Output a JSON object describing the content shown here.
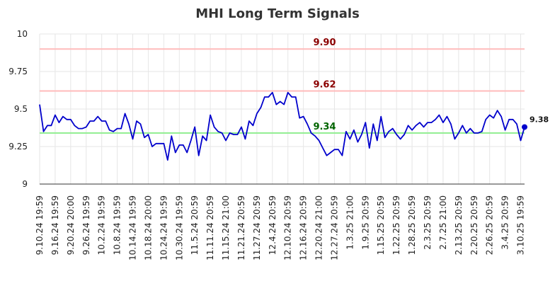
{
  "chart_data": {
    "type": "line",
    "title": "MHI Long Term Signals",
    "xlabel": "",
    "ylabel": "",
    "ylim": [
      9,
      10
    ],
    "yticks": [
      "9",
      "9.25",
      "9.5",
      "9.75",
      "10"
    ],
    "grid": true,
    "xticks": [
      "9.10.24 19:59",
      "9.16.24 19:59",
      "9.20.24 20:00",
      "9.26.24 19:59",
      "10.2.24 19:59",
      "10.8.24 19:59",
      "10.14.24 19:59",
      "10.18.24 20:00",
      "10.24.24 19:59",
      "10.30.24 19:59",
      "11.5.24 20:59",
      "11.11.24 20:59",
      "11.15.24 21:00",
      "11.21.24 20:59",
      "11.27.24 20:59",
      "12.4.24 20:59",
      "12.10.24 20:59",
      "12.16.24 20:59",
      "12.20.24 21:00",
      "12.27.24 20:59",
      "1.3.25 21:00",
      "1.9.25 20:59",
      "1.15.25 20:59",
      "1.22.25 20:59",
      "1.28.25 20:59",
      "2.3.25 20:59",
      "2.7.25 21:00",
      "2.13.25 20:59",
      "2.20.25 20:59",
      "2.26.25 20:59",
      "3.4.25 20:59",
      "3.10.25 19:59"
    ],
    "xtick_index_step": 4,
    "series": [
      {
        "color": "#0000cc",
        "values": [
          9.53,
          9.35,
          9.39,
          9.39,
          9.46,
          9.41,
          9.45,
          9.43,
          9.43,
          9.39,
          9.37,
          9.37,
          9.38,
          9.42,
          9.42,
          9.45,
          9.42,
          9.42,
          9.36,
          9.35,
          9.37,
          9.37,
          9.47,
          9.4,
          9.3,
          9.42,
          9.4,
          9.31,
          9.33,
          9.25,
          9.27,
          9.27,
          9.27,
          9.16,
          9.32,
          9.21,
          9.26,
          9.26,
          9.21,
          9.29,
          9.38,
          9.19,
          9.32,
          9.29,
          9.46,
          9.38,
          9.35,
          9.34,
          9.29,
          9.34,
          9.33,
          9.33,
          9.38,
          9.3,
          9.42,
          9.39,
          9.47,
          9.51,
          9.58,
          9.58,
          9.61,
          9.53,
          9.55,
          9.53,
          9.61,
          9.58,
          9.58,
          9.44,
          9.45,
          9.4,
          9.34,
          9.32,
          9.29,
          9.24,
          9.19,
          9.21,
          9.23,
          9.23,
          9.19,
          9.35,
          9.3,
          9.36,
          9.28,
          9.33,
          9.41,
          9.24,
          9.4,
          9.29,
          9.45,
          9.31,
          9.35,
          9.37,
          9.33,
          9.3,
          9.33,
          9.39,
          9.36,
          9.39,
          9.41,
          9.38,
          9.41,
          9.41,
          9.43,
          9.46,
          9.41,
          9.45,
          9.4,
          9.3,
          9.34,
          9.39,
          9.34,
          9.37,
          9.34,
          9.34,
          9.35,
          9.43,
          9.46,
          9.44,
          9.49,
          9.45,
          9.36,
          9.43,
          9.43,
          9.4,
          9.29,
          9.38
        ]
      }
    ],
    "reference_lines": [
      {
        "label": "9.90",
        "value": 9.9,
        "line_color": "#ffbbbb",
        "label_color": "#8b0000"
      },
      {
        "label": "9.62",
        "value": 9.62,
        "line_color": "#ffbbbb",
        "label_color": "#8b0000"
      },
      {
        "label": "9.34",
        "value": 9.34,
        "line_color": "#90ee90",
        "label_color": "#006400"
      }
    ],
    "last_value_label": "9.38"
  }
}
